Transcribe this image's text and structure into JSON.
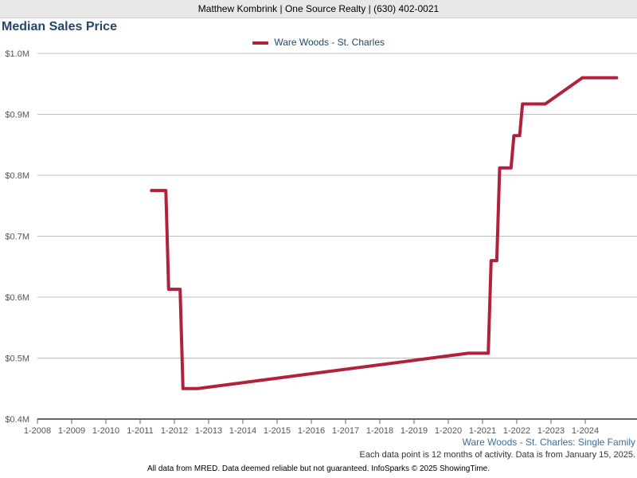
{
  "header": {
    "text": "Matthew Kombrink | One Source Realty | (630) 402-0021"
  },
  "colors": {
    "series": "#b0213b",
    "title": "#23476b",
    "grid": "#bdbdbd",
    "axis": "#666666",
    "caption": "#3d6d99"
  },
  "chart_data": {
    "type": "line",
    "title": "Median Sales Price",
    "legend_position": "top-center",
    "grid": true,
    "xlabel": "",
    "ylabel": "",
    "ylim": [
      400000,
      1000000
    ],
    "xlim": [
      "2008-01",
      "2025-01"
    ],
    "y_ticks": [
      400000,
      500000,
      600000,
      700000,
      800000,
      900000,
      1000000
    ],
    "y_tick_labels": [
      "$0.4M",
      "$0.5M",
      "$0.6M",
      "$0.7M",
      "$0.8M",
      "$0.9M",
      "$1.0M"
    ],
    "x_ticks": [
      "2008-01",
      "2009-01",
      "2010-01",
      "2011-01",
      "2012-01",
      "2013-01",
      "2014-01",
      "2015-01",
      "2016-01",
      "2017-01",
      "2018-01",
      "2019-01",
      "2020-01",
      "2021-01",
      "2022-01",
      "2023-01",
      "2024-01"
    ],
    "x_tick_labels": [
      "1-2008",
      "1-2009",
      "1-2010",
      "1-2011",
      "1-2012",
      "1-2013",
      "1-2014",
      "1-2015",
      "1-2016",
      "1-2017",
      "1-2018",
      "1-2019",
      "1-2020",
      "1-2021",
      "1-2022",
      "1-2023",
      "1-2024"
    ],
    "series": [
      {
        "name": "Ware Woods - St. Charles",
        "points": [
          [
            "2011-05",
            775000
          ],
          [
            "2011-10",
            775000
          ],
          [
            "2011-11",
            613000
          ],
          [
            "2012-03",
            613000
          ],
          [
            "2012-04",
            450000
          ],
          [
            "2012-09",
            450000
          ],
          [
            "2020-08",
            508000
          ],
          [
            "2021-03",
            508000
          ],
          [
            "2021-04",
            660000
          ],
          [
            "2021-06",
            660000
          ],
          [
            "2021-07",
            812000
          ],
          [
            "2021-11",
            812000
          ],
          [
            "2021-12",
            865000
          ],
          [
            "2022-02",
            865000
          ],
          [
            "2022-03",
            917000
          ],
          [
            "2022-11",
            917000
          ],
          [
            "2023-12",
            960000
          ],
          [
            "2024-12",
            960000
          ]
        ]
      }
    ]
  },
  "footer": {
    "source_caption": "Ware Woods - St. Charles: Single Family",
    "period_note": "Each data point is 12 months of activity. Data is from January 15, 2025.",
    "disclaimer": "All data from MRED. Data deemed reliable but not guaranteed. InfoSparks © 2025 ShowingTime."
  }
}
